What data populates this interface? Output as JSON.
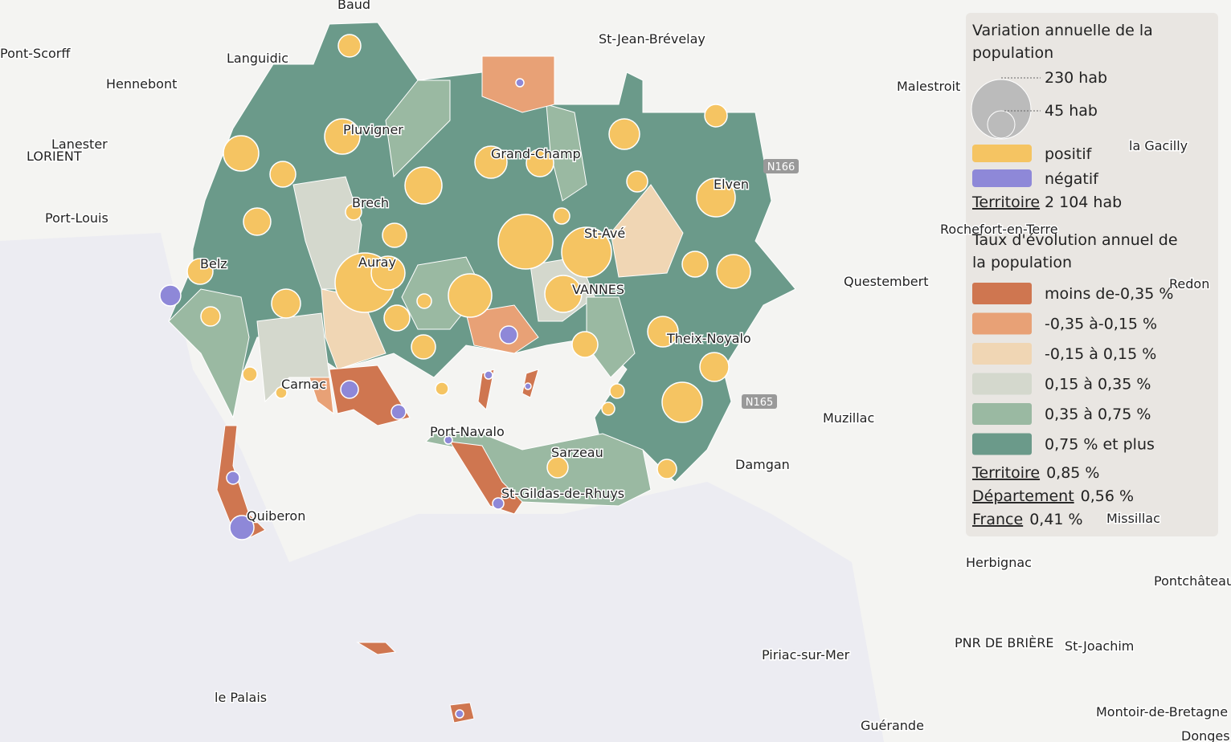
{
  "legend": {
    "title_circles": "Variation annuelle de la population",
    "circle_labels": [
      "230 hab",
      "45 hab"
    ],
    "signs": [
      {
        "label": "positif",
        "color": "#f5c462"
      },
      {
        "label": "négatif",
        "color": "#8e88d8"
      }
    ],
    "territory_circles": {
      "label": "Territoire",
      "value": "2 104 hab"
    },
    "title_classes": "Taux d'évolution annuel de la population",
    "classes": [
      {
        "label": "moins de-0,35 %",
        "color": "#cf7650"
      },
      {
        "label": "-0,35 à-0,15 %",
        "color": "#e8a176"
      },
      {
        "label": "-0,15 à 0,15 %",
        "color": "#f0d6b4"
      },
      {
        "label": "0,15 à 0,35 %",
        "color": "#d4d8cd"
      },
      {
        "label": "0,35 à 0,75 %",
        "color": "#9ab9a2"
      },
      {
        "label": "0,75 % et plus",
        "color": "#6b9a8a"
      }
    ],
    "stats": [
      {
        "label": "Territoire",
        "value": "0,85 %"
      },
      {
        "label": "Département",
        "value": "0,56 %"
      },
      {
        "label": "France",
        "value": "0,41 %"
      }
    ]
  },
  "places": [
    "Baud",
    "St-Jean-Brévelay",
    "Pont-Scorff",
    "Languidic",
    "Hennebont",
    "Malestroit",
    "Lanester",
    "LORIENT",
    "Pluvigner",
    "Grand-Champ",
    "la Gacilly",
    "Elven",
    "Brech",
    "Port-Louis",
    "Rochefort-en-Terre",
    "St-Avé",
    "Belz",
    "Auray",
    "Questembert",
    "VANNES",
    "Redon",
    "Theix-Noyalo",
    "Carnac",
    "Muzillac",
    "Port-Navalo",
    "Sarzeau",
    "Damgan",
    "St-Gildas-de-Rhuys",
    "Quiberon",
    "Missillac",
    "Herbignac",
    "Pontchâteau",
    "PNR DE BRIÈRE",
    "St-Joachim",
    "Piriac-sur-Mer",
    "le Palais",
    "Montoir-de-Bretagne",
    "Guérande",
    "Donges"
  ],
  "roads": [
    "N166",
    "N165"
  ]
}
